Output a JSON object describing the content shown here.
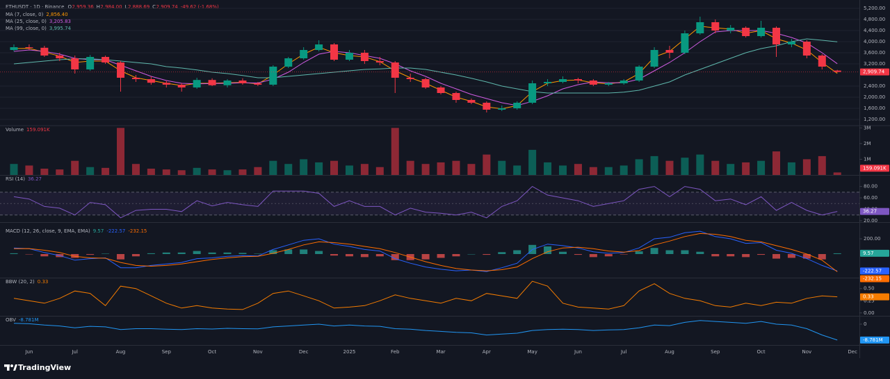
{
  "header": {
    "symbol": "ETHUSDT · 1D · Binance",
    "ohlc": [
      [
        "O",
        "2,959.36"
      ],
      [
        "H",
        "2,984.00"
      ],
      [
        "L",
        "2,888.69"
      ],
      [
        "C",
        "2,909.74"
      ]
    ],
    "change": "-49.62 (-1.68%)"
  },
  "footer": {
    "brand": "TradingView"
  },
  "chart_data": [
    {
      "type": "candlestick",
      "categories": [
        null,
        "Jun",
        null,
        null,
        "Jul",
        null,
        null,
        "Aug",
        null,
        null,
        "Sep",
        null,
        null,
        "Oct",
        null,
        null,
        "Nov",
        null,
        null,
        "Dec",
        null,
        null,
        "2025",
        null,
        null,
        "Feb",
        null,
        null,
        "Mar",
        null,
        null,
        "Apr",
        null,
        null,
        "May",
        null,
        null,
        "Jun",
        null,
        null,
        "Jul",
        null,
        null,
        "Aug",
        null,
        null,
        "Sep",
        null,
        null,
        "Oct",
        null,
        null,
        "Nov",
        null,
        null,
        "Dec"
      ],
      "open": [
        3700,
        3800,
        3780,
        3500,
        3400,
        3000,
        3450,
        3250,
        2700,
        2650,
        2520,
        2450,
        2350,
        2620,
        2430,
        2600,
        2500,
        2450,
        3100,
        3400,
        3700,
        3900,
        3350,
        3600,
        3300,
        3250,
        2700,
        2650,
        2350,
        2150,
        1900,
        1800,
        1550,
        1600,
        1800,
        2500,
        2550,
        2650,
        2600,
        2450,
        2500,
        2600,
        3100,
        3700,
        3600,
        4300,
        4700,
        4400,
        4500,
        4200,
        4500,
        3900,
        4000,
        3500,
        2959.36,
        null
      ],
      "high": [
        3900,
        3900,
        3850,
        3600,
        3500,
        3520,
        3500,
        3300,
        2800,
        2750,
        2600,
        2500,
        2700,
        2680,
        2650,
        2680,
        2550,
        3150,
        3450,
        3800,
        4050,
        3950,
        3700,
        3700,
        3450,
        3300,
        2850,
        2700,
        2400,
        2200,
        1950,
        1850,
        1700,
        1850,
        2600,
        2650,
        2750,
        2700,
        2650,
        2550,
        2650,
        3150,
        3800,
        3850,
        4400,
        4900,
        4800,
        4600,
        4550,
        4750,
        4550,
        4100,
        4050,
        3550,
        2984,
        null
      ],
      "low": [
        3650,
        3700,
        3450,
        3300,
        2850,
        2950,
        3200,
        2200,
        2550,
        2450,
        2350,
        2200,
        2300,
        2400,
        2350,
        2450,
        2400,
        2400,
        3050,
        3350,
        3650,
        3300,
        3300,
        3200,
        3150,
        2150,
        2550,
        2300,
        2100,
        1800,
        1750,
        1450,
        1500,
        1550,
        1750,
        2400,
        2500,
        2500,
        2400,
        2400,
        2450,
        2550,
        3050,
        3400,
        3550,
        4250,
        4300,
        4300,
        4150,
        4150,
        3450,
        3800,
        3400,
        3000,
        2888.69,
        null
      ],
      "close": [
        3800,
        3780,
        3500,
        3400,
        3000,
        3450,
        3250,
        2700,
        2650,
        2520,
        2450,
        2350,
        2620,
        2430,
        2600,
        2500,
        2450,
        3100,
        3400,
        3700,
        3900,
        3350,
        3600,
        3300,
        3250,
        2700,
        2650,
        2350,
        2150,
        1900,
        1800,
        1550,
        1600,
        1800,
        2500,
        2550,
        2650,
        2600,
        2450,
        2500,
        2600,
        3100,
        3700,
        3600,
        4300,
        4700,
        4400,
        4500,
        4200,
        4500,
        3900,
        4000,
        3500,
        3100,
        2909.74,
        null
      ],
      "last_label": "2,909.74",
      "up_color": "#089981",
      "down_color": "#f23645",
      "overlays": [
        {
          "name": "MA (7, close, 0)",
          "legend_value": "2,856.40",
          "color": "#ff9800",
          "values": [
            3750,
            3760,
            3620,
            3480,
            3250,
            3300,
            3300,
            2950,
            2700,
            2600,
            2500,
            2420,
            2500,
            2500,
            2520,
            2530,
            2480,
            2800,
            3200,
            3550,
            3800,
            3600,
            3500,
            3450,
            3280,
            2950,
            2700,
            2500,
            2250,
            2000,
            1850,
            1650,
            1580,
            1700,
            2200,
            2500,
            2600,
            2620,
            2520,
            2480,
            2550,
            2850,
            3450,
            3650,
            4100,
            4550,
            4500,
            4450,
            4300,
            4400,
            4100,
            3950,
            3700,
            3250,
            2856.4,
            null
          ]
        },
        {
          "name": "MA (25, close, 0)",
          "legend_value": "3,205.83",
          "color": "#d05ce3",
          "values": [
            3650,
            3700,
            3650,
            3550,
            3400,
            3350,
            3350,
            3150,
            2950,
            2750,
            2600,
            2500,
            2480,
            2490,
            2500,
            2520,
            2510,
            2650,
            2900,
            3250,
            3550,
            3650,
            3600,
            3500,
            3400,
            3200,
            2950,
            2750,
            2500,
            2300,
            2100,
            1950,
            1800,
            1700,
            1850,
            2050,
            2300,
            2450,
            2550,
            2520,
            2520,
            2650,
            2950,
            3250,
            3600,
            4000,
            4350,
            4400,
            4400,
            4400,
            4300,
            4150,
            3950,
            3600,
            3205.83,
            null
          ]
        },
        {
          "name": "MA (99, close, 0)",
          "legend_value": "3,995.74",
          "color": "#5fb8ad",
          "values": [
            3200,
            3250,
            3300,
            3350,
            3380,
            3380,
            3350,
            3300,
            3250,
            3200,
            3100,
            3050,
            2980,
            2900,
            2850,
            2780,
            2700,
            2700,
            2750,
            2800,
            2850,
            2900,
            2950,
            3000,
            3020,
            3050,
            3050,
            3000,
            2900,
            2800,
            2680,
            2550,
            2400,
            2300,
            2200,
            2150,
            2150,
            2150,
            2150,
            2150,
            2180,
            2250,
            2400,
            2550,
            2800,
            3000,
            3200,
            3400,
            3600,
            3750,
            3850,
            4000,
            4100,
            4050,
            3995.74,
            null
          ]
        }
      ],
      "ylim": [
        1000,
        5500
      ],
      "yticks": [
        {
          "value": 5200,
          "label": "5,200.00"
        },
        {
          "value": 4800,
          "label": "4,800.00"
        },
        {
          "value": 4400,
          "label": "4,400.00"
        },
        {
          "value": 4000,
          "label": "4,000.00"
        },
        {
          "value": 3600,
          "label": "3,600.00"
        },
        {
          "value": 3200,
          "label": "3,200.00"
        },
        {
          "value": 2400,
          "label": "2,400.00"
        },
        {
          "value": 2000,
          "label": "2,000.00"
        },
        {
          "value": 1600,
          "label": "1,600.00"
        },
        {
          "value": 1200,
          "label": "1,200.00"
        }
      ],
      "grid": true
    },
    {
      "type": "bar",
      "title": "Volume",
      "legend_value": "159.091K",
      "color": "#f23645",
      "values": [
        700000,
        600000,
        400000,
        350000,
        900000,
        500000,
        450000,
        3000000,
        700000,
        400000,
        350000,
        300000,
        450000,
        350000,
        300000,
        350000,
        500000,
        900000,
        700000,
        1000000,
        800000,
        900000,
        600000,
        700000,
        500000,
        3000000,
        900000,
        700000,
        800000,
        900000,
        700000,
        1300000,
        900000,
        600000,
        1600000,
        800000,
        600000,
        700000,
        500000,
        500000,
        600000,
        1000000,
        1200000,
        900000,
        1100000,
        1300000,
        900000,
        700000,
        800000,
        900000,
        1500000,
        800000,
        1000000,
        1200000,
        159091,
        null
      ],
      "ylim": [
        0,
        3100000
      ],
      "yticks": [
        {
          "value": 1000000,
          "label": "1M"
        },
        {
          "value": 2000000,
          "label": "2M"
        },
        {
          "value": 3000000,
          "label": "3M"
        }
      ]
    },
    {
      "type": "line",
      "title": "RSI (14)",
      "legend_value": "36.27",
      "color": "#7e57c2",
      "values": [
        62,
        58,
        45,
        42,
        30,
        52,
        48,
        25,
        38,
        40,
        40,
        36,
        55,
        46,
        52,
        48,
        45,
        72,
        72,
        72,
        68,
        45,
        55,
        45,
        45,
        30,
        42,
        35,
        33,
        30,
        35,
        25,
        45,
        55,
        80,
        65,
        60,
        55,
        45,
        50,
        55,
        75,
        80,
        62,
        80,
        75,
        55,
        58,
        48,
        62,
        38,
        52,
        38,
        30,
        36.27,
        null
      ],
      "band": [
        30,
        70
      ],
      "midline": 50,
      "ylim": [
        17.5,
        99
      ],
      "yticks": [
        {
          "value": 80,
          "label": "80.00"
        },
        {
          "value": 60,
          "label": "60.00"
        },
        {
          "value": 40,
          "label": "40.00"
        },
        {
          "value": 20,
          "label": "20.00"
        }
      ]
    },
    {
      "type": "macd",
      "title": "MACD (12, 26, close, 9, EMA, EMA)",
      "histogram": {
        "legend_value": "9.57",
        "up_color": "#26a69a",
        "down_color": "#ef5350",
        "values": [
          10,
          -2,
          -30,
          -40,
          -50,
          -10,
          5,
          -70,
          -30,
          10,
          20,
          20,
          40,
          20,
          20,
          15,
          5,
          50,
          60,
          60,
          40,
          -20,
          -30,
          -40,
          -30,
          -80,
          -80,
          -70,
          -50,
          -30,
          0,
          -10,
          25,
          50,
          120,
          100,
          30,
          -10,
          -40,
          -30,
          -5,
          35,
          80,
          50,
          50,
          30,
          -30,
          -30,
          -40,
          -10,
          -60,
          -50,
          -60,
          -70,
          9.57,
          null
        ]
      },
      "macd": {
        "legend_value": "-222.57",
        "color": "#2962ff",
        "values": [
          80,
          70,
          20,
          -20,
          -80,
          -60,
          -50,
          -180,
          -180,
          -150,
          -130,
          -110,
          -60,
          -50,
          -30,
          -20,
          -25,
          60,
          120,
          180,
          200,
          130,
          100,
          60,
          40,
          -60,
          -120,
          -170,
          -200,
          -220,
          -210,
          -230,
          -180,
          -120,
          60,
          130,
          110,
          80,
          30,
          10,
          20,
          80,
          200,
          220,
          280,
          300,
          230,
          200,
          140,
          150,
          50,
          10,
          -60,
          -150,
          -222.57,
          null
        ]
      },
      "signal": {
        "legend_value": "-232.15",
        "color": "#ff6d00",
        "values": [
          70,
          72,
          50,
          20,
          -30,
          -50,
          -55,
          -110,
          -150,
          -160,
          -150,
          -130,
          -100,
          -70,
          -50,
          -35,
          -30,
          10,
          60,
          120,
          160,
          150,
          130,
          100,
          70,
          20,
          -40,
          -100,
          -150,
          -190,
          -210,
          -220,
          -205,
          -170,
          -60,
          30,
          80,
          90,
          70,
          40,
          25,
          45,
          120,
          170,
          230,
          270,
          260,
          230,
          180,
          160,
          110,
          60,
          0,
          -80,
          -232.15,
          null
        ]
      },
      "ylim": [
        -310,
        410
      ],
      "yticks": [
        {
          "value": 200,
          "label": "200.00"
        }
      ]
    },
    {
      "type": "line",
      "title": "BBW (20, 2)",
      "legend_value": "0.33",
      "color": "#f57c00",
      "values": [
        0.3,
        0.25,
        0.2,
        0.3,
        0.45,
        0.4,
        0.15,
        0.55,
        0.5,
        0.35,
        0.2,
        0.1,
        0.15,
        0.1,
        0.08,
        0.07,
        0.2,
        0.4,
        0.45,
        0.35,
        0.25,
        0.1,
        0.12,
        0.15,
        0.25,
        0.37,
        0.3,
        0.25,
        0.2,
        0.3,
        0.25,
        0.4,
        0.35,
        0.3,
        0.65,
        0.55,
        0.2,
        0.12,
        0.1,
        0.08,
        0.15,
        0.45,
        0.6,
        0.4,
        0.3,
        0.25,
        0.15,
        0.12,
        0.2,
        0.15,
        0.22,
        0.2,
        0.3,
        0.35,
        0.33,
        null
      ],
      "ylim": [
        -0.06,
        0.71
      ],
      "yticks": [
        {
          "value": 0.5,
          "label": "0.50"
        },
        {
          "value": 0.25,
          "label": "0.25"
        },
        {
          "value": 0,
          "label": "0.00"
        }
      ]
    },
    {
      "type": "line",
      "title": "OBV",
      "legend_value": "-8.781M",
      "color": "#2196f3",
      "values": [
        500000,
        200000,
        -500000,
        -1000000,
        -2000000,
        -1200000,
        -1500000,
        -3000000,
        -2500000,
        -2500000,
        -2800000,
        -3000000,
        -2500000,
        -2700000,
        -2300000,
        -2500000,
        -2600000,
        -1500000,
        -1000000,
        -500000,
        0,
        -1000000,
        -500000,
        -1000000,
        -1200000,
        -2500000,
        -2800000,
        -3500000,
        -4000000,
        -4500000,
        -4800000,
        -6000000,
        -5500000,
        -5000000,
        -3500000,
        -3000000,
        -2800000,
        -3000000,
        -3500000,
        -3200000,
        -3000000,
        -2000000,
        -500000,
        -800000,
        1000000,
        2000000,
        1500000,
        1000000,
        500000,
        1500000,
        0,
        -500000,
        -2500000,
        -6000000,
        -8781000,
        null
      ],
      "ylim": [
        -11500000,
        4200000
      ],
      "yticks": [
        0
      ]
    }
  ]
}
